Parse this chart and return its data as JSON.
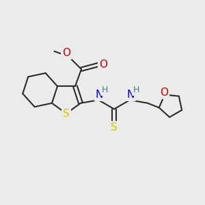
{
  "bg_color": "#ebebeb",
  "bond_color": "#2a2a2a",
  "bond_width": 1.5,
  "atom_colors": {
    "S": "#cccc00",
    "O": "#cc0000",
    "N": "#0000ee",
    "H": "#557788"
  },
  "font_size_atom": 11,
  "font_size_H": 9,
  "figsize": [
    3.0,
    3.0
  ],
  "dpi": 100
}
